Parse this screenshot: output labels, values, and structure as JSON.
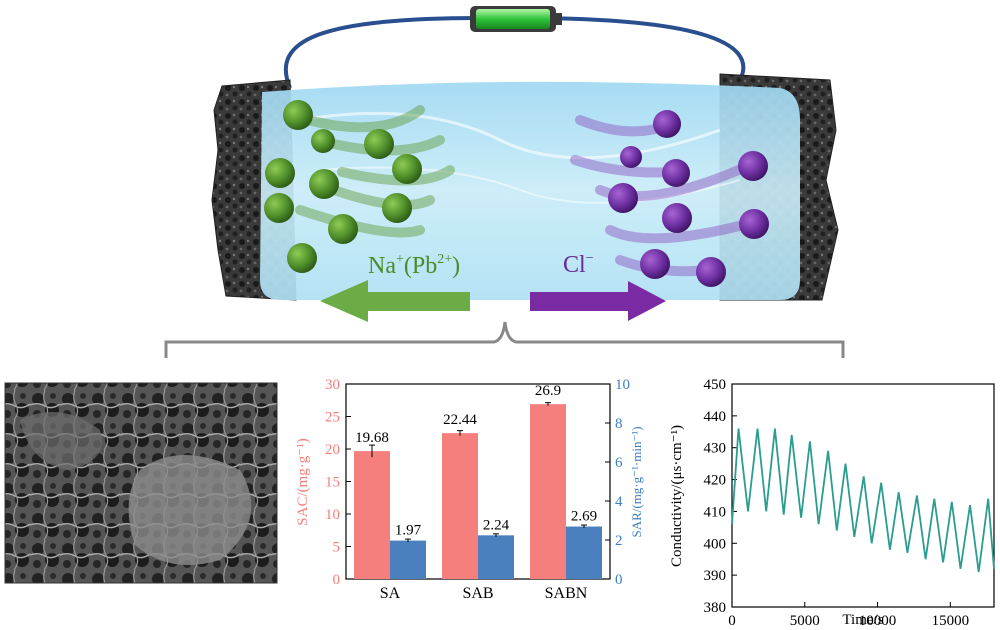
{
  "cell": {
    "cation_label_main": "Na",
    "cation_sup1": "+",
    "cation_paren": "(Pb",
    "cation_sup2": "2+",
    "cation_close": ")",
    "anion_label_main": "Cl",
    "anion_sup": "−",
    "colors": {
      "cation": "#4a8c2a",
      "anion": "#6a2a96",
      "battery": "#2fc43a",
      "wire": "#2a4f8f"
    }
  },
  "bar_chart": {
    "categories": [
      "SA",
      "SAB",
      "SABN"
    ],
    "left_axis_label": "SAC/(mg·g⁻¹)",
    "right_axis_label": "SAR/(mg·g⁻¹·min⁻¹)",
    "left_ticks": [
      "0",
      "5",
      "10",
      "15",
      "20",
      "25",
      "30"
    ],
    "right_ticks": [
      "0",
      "2",
      "4",
      "6",
      "8",
      "10"
    ],
    "sac_labels": [
      "19.68",
      "22.44",
      "26.9"
    ],
    "sar_labels": [
      "1.97",
      "2.24",
      "2.69"
    ],
    "colors": {
      "sac": "#f47f7c",
      "sar": "#4a80bd",
      "left_axis": "#f47f7c",
      "right_axis": "#3f7fc0"
    }
  },
  "chart_data": {
    "type": "line",
    "xlabel": "Time/s",
    "ylabel": "Conductivity/(μs·cm⁻¹)",
    "xlim": [
      0,
      18000
    ],
    "ylim": [
      380,
      450
    ],
    "x_ticks": [
      "0",
      "5000",
      "10000",
      "15000"
    ],
    "y_ticks": [
      "380",
      "390",
      "400",
      "410",
      "420",
      "430",
      "440",
      "450"
    ],
    "series": [
      {
        "color": "#2a9d8f",
        "peaks_x": [
          450,
          1750,
          2950,
          4100,
          5350,
          6600,
          7800,
          9050,
          10250,
          11450,
          12700,
          13900,
          15100,
          16350,
          17600
        ],
        "peaks_y": [
          436,
          436,
          436,
          434,
          432,
          429,
          425,
          421,
          419,
          416,
          415,
          414,
          413,
          412,
          414
        ],
        "troughs_x": [
          0,
          1100,
          2350,
          3550,
          4750,
          5950,
          7200,
          8400,
          9600,
          10850,
          12050,
          13300,
          14500,
          15700,
          16950,
          18000
        ],
        "troughs_y": [
          406,
          410,
          410,
          409,
          408,
          406,
          404,
          402,
          400,
          398,
          397,
          395,
          394,
          392,
          391,
          392
        ]
      }
    ]
  }
}
